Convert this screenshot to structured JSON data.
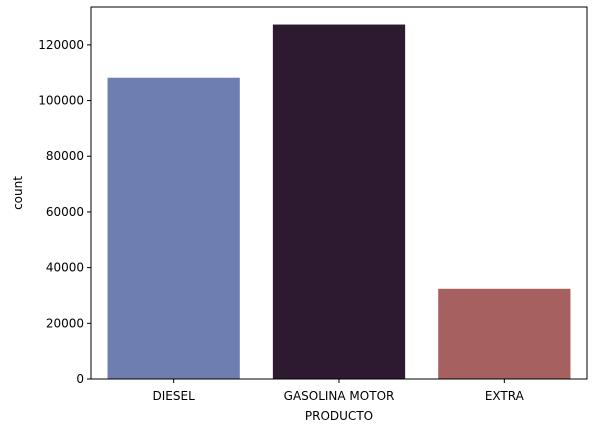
{
  "chart_data": {
    "type": "bar",
    "categories": [
      "DIESEL",
      "GASOLINA MOTOR",
      "EXTRA"
    ],
    "values": [
      108200,
      127300,
      32400
    ],
    "colors": [
      "#6e7eb1",
      "#2e1a30",
      "#a66060"
    ],
    "xlabel": "PRODUCTO",
    "ylabel": "count",
    "ylim": [
      0,
      133600
    ],
    "yticks": [
      0,
      20000,
      40000,
      60000,
      80000,
      100000,
      120000
    ],
    "grid": false,
    "legend": "none"
  }
}
